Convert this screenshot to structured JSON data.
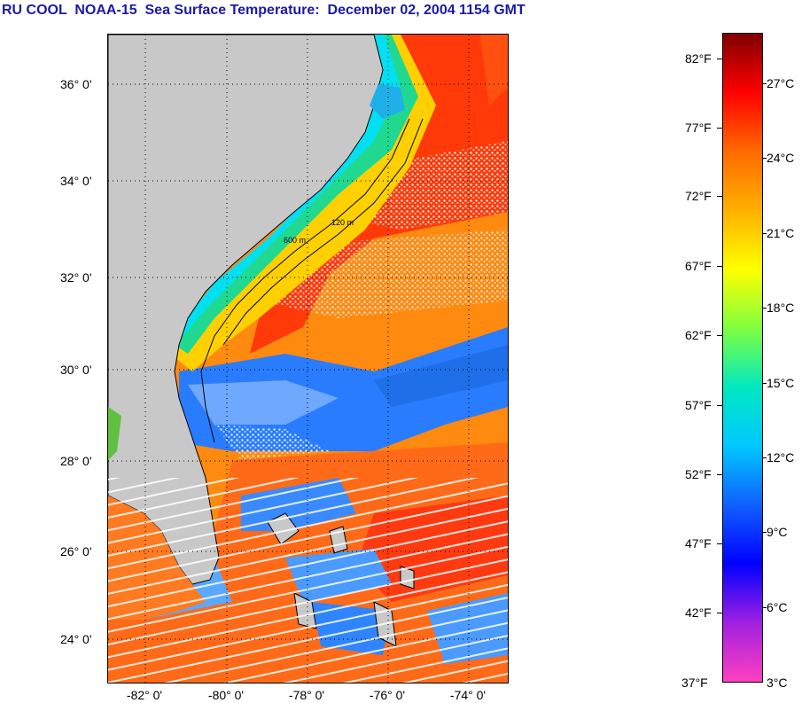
{
  "title": "RU COOL  NOAA-15  Sea Surface Temperature:  December 02, 2004 1154 GMT",
  "map": {
    "latitude_labels": [
      "36° 0'",
      "34° 0'",
      "32° 0'",
      "30° 0'",
      "28° 0'",
      "26° 0'",
      "24° 0'"
    ],
    "longitude_labels": [
      "-82° 0'",
      "-80° 0'",
      "-78° 0'",
      "-76° 0'",
      "-74° 0'"
    ],
    "isobath_labels": [
      "120 m",
      "600 m"
    ],
    "colors": {
      "land": "#c8c8c8",
      "gulf_stream": "#ff4a08",
      "open_ocean": "#ff9020",
      "cool_water": "#1e90ff",
      "coastal_cold": "#00e8e8",
      "clouds": "#ffffff"
    }
  },
  "colorbar": {
    "fahrenheit_labels": [
      "82°F",
      "77°F",
      "72°F",
      "67°F",
      "62°F",
      "57°F",
      "52°F",
      "47°F",
      "42°F",
      "37°F"
    ],
    "celsius_labels": [
      "27°C",
      "24°C",
      "21°C",
      "18°C",
      "15°C",
      "12°C",
      "9°C",
      "6°C",
      "3°C"
    ],
    "gradient_stops": [
      "#800000",
      "#ff0000",
      "#ff6a00",
      "#ffb000",
      "#ffff00",
      "#80ff40",
      "#00e8c0",
      "#00c8ff",
      "#1060ff",
      "#0000ff",
      "#a020e0",
      "#ff40c0"
    ]
  }
}
